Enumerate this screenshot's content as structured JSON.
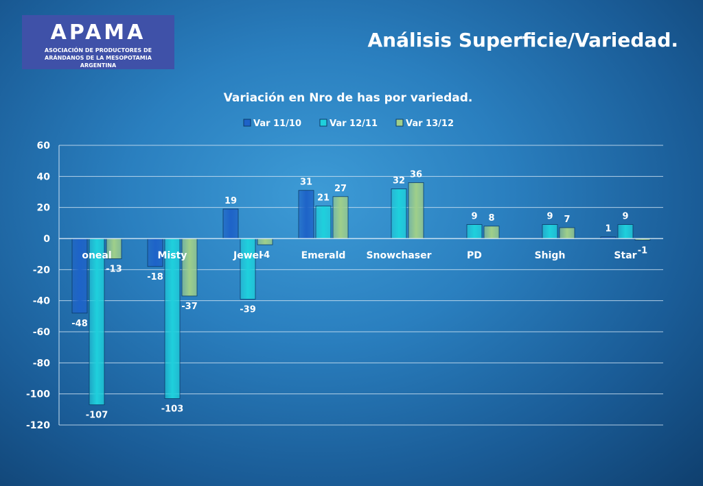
{
  "logo": {
    "word": "APAMA",
    "subtitle": "ASOCIACIÓN DE PRODUCTORES DE ARÁNDANOS DE LA MESOPOTAMIA ARGENTINA"
  },
  "slide_title": "Análisis Superficie/Variedad.",
  "colors": {
    "series": [
      "#1e63c8",
      "#1fd0dc",
      "#9fcf8a"
    ],
    "axis": "#d9ecf7",
    "text": "#ffffff"
  },
  "chart_data": {
    "type": "bar",
    "title": "Variación en Nro de has por variedad.",
    "categories": [
      "oneal",
      "Misty",
      "Jewel",
      "Emerald",
      "Snowchaser",
      "PD",
      "Shigh",
      "Star"
    ],
    "series": [
      {
        "name": "Var 11/10",
        "values": [
          -48,
          -18,
          19,
          31,
          null,
          null,
          null,
          1
        ]
      },
      {
        "name": "Var 12/11",
        "values": [
          -107,
          -103,
          -39,
          21,
          32,
          9,
          9,
          9
        ]
      },
      {
        "name": "Var 13/12",
        "values": [
          -13,
          -37,
          -4,
          27,
          36,
          8,
          7,
          -1
        ]
      }
    ],
    "ylim": [
      -120,
      60
    ],
    "yticks": [
      60,
      40,
      20,
      0,
      -20,
      -40,
      -60,
      -80,
      -100,
      -120
    ],
    "grid": true,
    "legend": "top"
  }
}
